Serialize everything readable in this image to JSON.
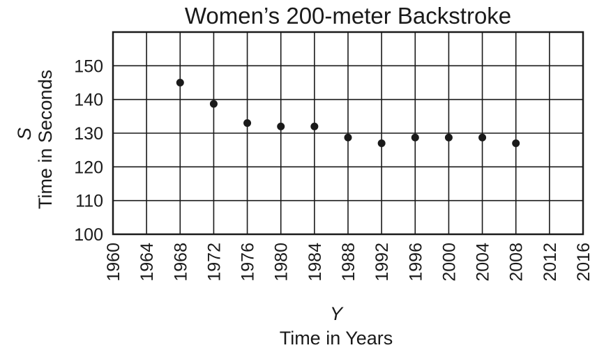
{
  "chart_data": {
    "type": "scatter",
    "title": "Women’s 200-meter Backstroke",
    "xlabel_var": "Y",
    "xlabel": "Time in Years",
    "ylabel_var": "S",
    "ylabel": "Time in Seconds",
    "xlim": [
      1960,
      2016
    ],
    "ylim": [
      100,
      160
    ],
    "xticks": [
      1960,
      1964,
      1968,
      1972,
      1976,
      1980,
      1984,
      1988,
      1992,
      1996,
      2000,
      2004,
      2008,
      2012,
      2016
    ],
    "yticks": [
      100,
      110,
      120,
      130,
      140,
      150
    ],
    "grid": true,
    "points": [
      {
        "x": 1968,
        "y": 145
      },
      {
        "x": 1972,
        "y": 138.7
      },
      {
        "x": 1976,
        "y": 133
      },
      {
        "x": 1980,
        "y": 132
      },
      {
        "x": 1984,
        "y": 132
      },
      {
        "x": 1988,
        "y": 128.7
      },
      {
        "x": 1992,
        "y": 127
      },
      {
        "x": 1996,
        "y": 128.7
      },
      {
        "x": 2000,
        "y": 128.7
      },
      {
        "x": 2004,
        "y": 128.7
      },
      {
        "x": 2008,
        "y": 127
      }
    ]
  }
}
